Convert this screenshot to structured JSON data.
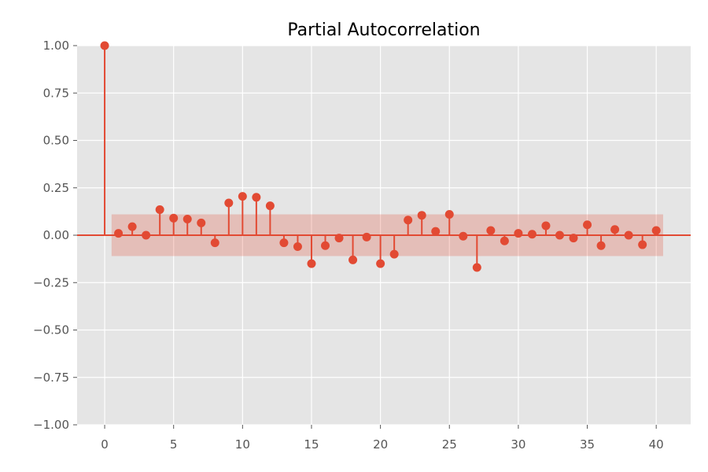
{
  "chart_data": {
    "type": "stem",
    "title": "Partial Autocorrelation",
    "xlabel": "",
    "ylabel": "",
    "xlim": [
      -2,
      42.5
    ],
    "ylim": [
      -1.0,
      1.0
    ],
    "xticks": [
      0,
      5,
      10,
      15,
      20,
      25,
      30,
      35,
      40
    ],
    "xtick_labels": [
      "0",
      "5",
      "10",
      "15",
      "20",
      "25",
      "30",
      "35",
      "40"
    ],
    "yticks": [
      1.0,
      0.75,
      0.5,
      0.25,
      0.0,
      -0.25,
      -0.5,
      -0.75,
      -1.0
    ],
    "ytick_labels": [
      "1.00",
      "0.75",
      "0.50",
      "0.25",
      "0.00",
      "−0.25",
      "−0.50",
      "−0.75",
      "−1.00"
    ],
    "grid": true,
    "confidence_band": {
      "x_start": 0.5,
      "x_end": 40.5,
      "lower": -0.11,
      "upper": 0.11
    },
    "x": [
      0,
      1,
      2,
      3,
      4,
      5,
      6,
      7,
      8,
      9,
      10,
      11,
      12,
      13,
      14,
      15,
      16,
      17,
      18,
      19,
      20,
      21,
      22,
      23,
      24,
      25,
      26,
      27,
      28,
      29,
      30,
      31,
      32,
      33,
      34,
      35,
      36,
      37,
      38,
      39,
      40
    ],
    "values": [
      1.0,
      0.01,
      0.045,
      0.0,
      0.135,
      0.09,
      0.085,
      0.065,
      -0.04,
      0.17,
      0.205,
      0.2,
      0.155,
      -0.04,
      -0.06,
      -0.15,
      -0.055,
      -0.015,
      -0.13,
      -0.01,
      -0.15,
      -0.1,
      0.08,
      0.105,
      0.02,
      0.11,
      -0.005,
      -0.17,
      0.025,
      -0.03,
      0.01,
      0.005,
      0.05,
      0.0,
      -0.015,
      0.055,
      -0.055,
      0.03,
      0.0,
      -0.05,
      0.025
    ]
  },
  "colors": {
    "series": "#E24A33",
    "band": "#E24A33",
    "panel_background": "#E5E5E5",
    "grid": "#FFFFFF",
    "tick_text": "#555555",
    "title_text": "#000000"
  }
}
